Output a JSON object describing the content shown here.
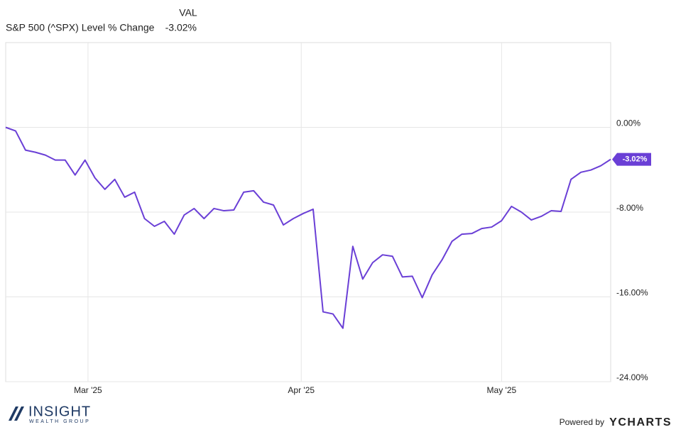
{
  "chart_data": {
    "type": "line",
    "legend_header": "VAL",
    "series": [
      {
        "name": "S&P 500 (^SPX) Level % Change",
        "color": "#6a3fd6",
        "values": [
          0,
          -0.34,
          -2.15,
          -2.35,
          -2.62,
          -3.09,
          -3.09,
          -4.5,
          -3.09,
          -4.77,
          -5.85,
          -4.91,
          -6.59,
          -6.12,
          -8.61,
          -9.34,
          -8.87,
          -10.08,
          -8.27,
          -7.66,
          -8.61,
          -7.66,
          -7.87,
          -7.8,
          -6.12,
          -5.98,
          -7.06,
          -7.33,
          -9.21,
          -8.61,
          -8.13,
          -7.73,
          -17.41,
          -17.61,
          -18.96,
          -11.23,
          -14.32,
          -12.77,
          -12.03,
          -12.17,
          -14.12,
          -14.05,
          -16.07,
          -13.92,
          -12.5,
          -10.76,
          -10.08,
          -10.02,
          -9.55,
          -9.41,
          -8.81,
          -7.46,
          -8.0,
          -8.74,
          -8.4,
          -7.87,
          -7.93,
          -4.91,
          -4.24,
          -4.03,
          -3.63,
          -3.02
        ],
        "value_labels": [
          null,
          null,
          null,
          null,
          null,
          null,
          null,
          null,
          null,
          null,
          null,
          null,
          null,
          null,
          null,
          null,
          null,
          null,
          null,
          null,
          null,
          null,
          null,
          null,
          null,
          null,
          null,
          null,
          null,
          null,
          null,
          null,
          null,
          null,
          null,
          null,
          null,
          null,
          null,
          null,
          null,
          null,
          null,
          null,
          null,
          null,
          null,
          null,
          null,
          null,
          null,
          null,
          null,
          null,
          null,
          null,
          null,
          null,
          null,
          null,
          null,
          "-3.02%"
        ]
      }
    ],
    "xlim": [
      0,
      61
    ],
    "xticks": [
      {
        "value": 8.3,
        "label": "Mar '25"
      },
      {
        "value": 29.8,
        "label": "Apr '25"
      },
      {
        "value": 50,
        "label": "May '25"
      }
    ],
    "ylim": [
      -24,
      8
    ],
    "yticks": [
      {
        "value": -24,
        "label": "-24.00%"
      },
      {
        "value": -16,
        "label": "-16.00%"
      },
      {
        "value": -8,
        "label": "-8.00%"
      },
      {
        "value": 0,
        "label": "0.00%"
      }
    ],
    "grid": true
  },
  "footer": {
    "logo": "INSIGHT",
    "logo_sub": "WEALTH GROUP",
    "powered_by": "Powered by",
    "brand": "YCHARTS"
  }
}
